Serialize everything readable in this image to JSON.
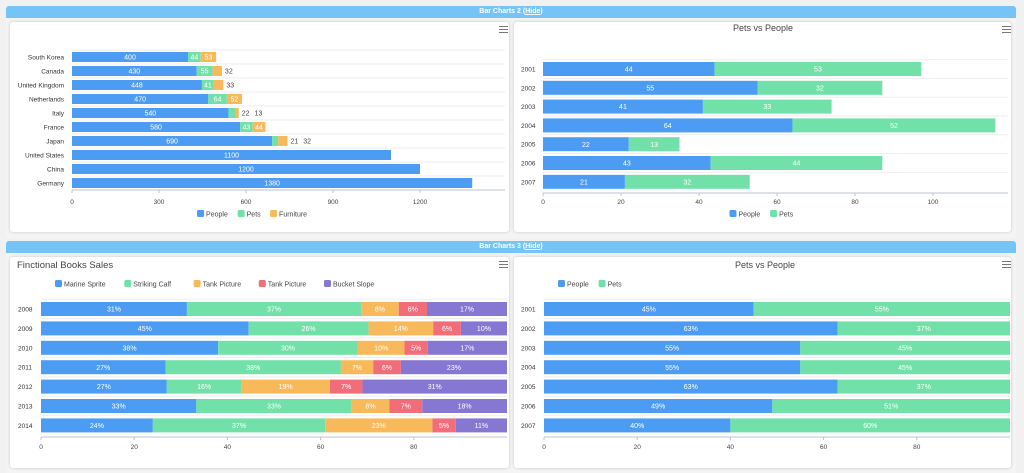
{
  "panels": [
    {
      "title": "Bar Charts 2",
      "hide_label": "Hide"
    },
    {
      "title": "Bar Charts 3",
      "hide_label": "Hide"
    }
  ],
  "menu_icon": "hamburger-menu-icon",
  "colors": {
    "people": "#4d9cf3",
    "pets": "#72e1a9",
    "furniture": "#f8b95b",
    "red": "#f16d7a",
    "purple": "#8677d2",
    "header": "#74c4f7"
  },
  "chart_data": [
    {
      "type": "bar",
      "orientation": "horizontal",
      "stacked": true,
      "title": "",
      "categories": [
        "South Korea",
        "Canada",
        "United Kingdom",
        "Netherlands",
        "Italy",
        "France",
        "Japan",
        "United States",
        "China",
        "Germany"
      ],
      "series": [
        {
          "name": "People",
          "values": [
            400,
            430,
            448,
            470,
            540,
            580,
            690,
            1100,
            1200,
            1380
          ]
        },
        {
          "name": "Pets",
          "values": [
            44,
            55,
            41,
            64,
            22,
            43,
            21,
            0,
            0,
            0
          ]
        },
        {
          "name": "Furniture",
          "values": [
            53,
            32,
            33,
            52,
            13,
            44,
            32,
            0,
            0,
            0
          ]
        }
      ],
      "xticks": [
        "0",
        "300",
        "600",
        "900",
        "1200"
      ],
      "xlim": [
        0,
        1390
      ],
      "legend": "bottom",
      "grid": true
    },
    {
      "type": "bar",
      "orientation": "horizontal",
      "stacked": true,
      "title": "Pets vs People",
      "categories": [
        "2001",
        "2002",
        "2003",
        "2004",
        "2005",
        "2006",
        "2007"
      ],
      "series": [
        {
          "name": "People",
          "values": [
            44,
            55,
            41,
            64,
            22,
            43,
            21
          ]
        },
        {
          "name": "Pets",
          "values": [
            53,
            32,
            33,
            52,
            13,
            44,
            32
          ]
        }
      ],
      "xticks": [
        "0",
        "20",
        "40",
        "60",
        "80",
        "100"
      ],
      "xlim": [
        0,
        119
      ],
      "legend": "bottom",
      "grid": true
    },
    {
      "type": "bar",
      "orientation": "horizontal",
      "stacked": "100%",
      "title": "Finctional Books Sales",
      "categories": [
        "2008",
        "2009",
        "2010",
        "2011",
        "2012",
        "2013",
        "2014"
      ],
      "series": [
        {
          "name": "Marine Sprite",
          "values": [
            31,
            45,
            38,
            27,
            27,
            33,
            24
          ]
        },
        {
          "name": "Striking Calf",
          "values": [
            37,
            26,
            30,
            38,
            16,
            33,
            37
          ]
        },
        {
          "name": "Tank Picture",
          "values": [
            8,
            14,
            10,
            7,
            19,
            8,
            23
          ]
        },
        {
          "name": "Tank Picture",
          "values": [
            6,
            6,
            5,
            6,
            7,
            7,
            5
          ]
        },
        {
          "name": "Bucket Slope",
          "values": [
            17,
            10,
            17,
            23,
            31,
            18,
            11
          ]
        }
      ],
      "xticks": [
        "0",
        "20",
        "40",
        "60",
        "80"
      ],
      "xlim": [
        0,
        100
      ],
      "legend": "top-left",
      "grid": true
    },
    {
      "type": "bar",
      "orientation": "horizontal",
      "stacked": "100%",
      "title": "Pets vs People",
      "categories": [
        "2001",
        "2002",
        "2003",
        "2004",
        "2005",
        "2006",
        "2007"
      ],
      "series": [
        {
          "name": "People",
          "values": [
            45,
            63,
            55,
            55,
            63,
            49,
            40
          ]
        },
        {
          "name": "Pets",
          "values": [
            55,
            37,
            45,
            45,
            37,
            51,
            60
          ]
        }
      ],
      "xticks": [
        "0",
        "20",
        "40",
        "60",
        "80"
      ],
      "xlim": [
        0,
        100
      ],
      "legend": "top-left",
      "grid": true
    }
  ]
}
